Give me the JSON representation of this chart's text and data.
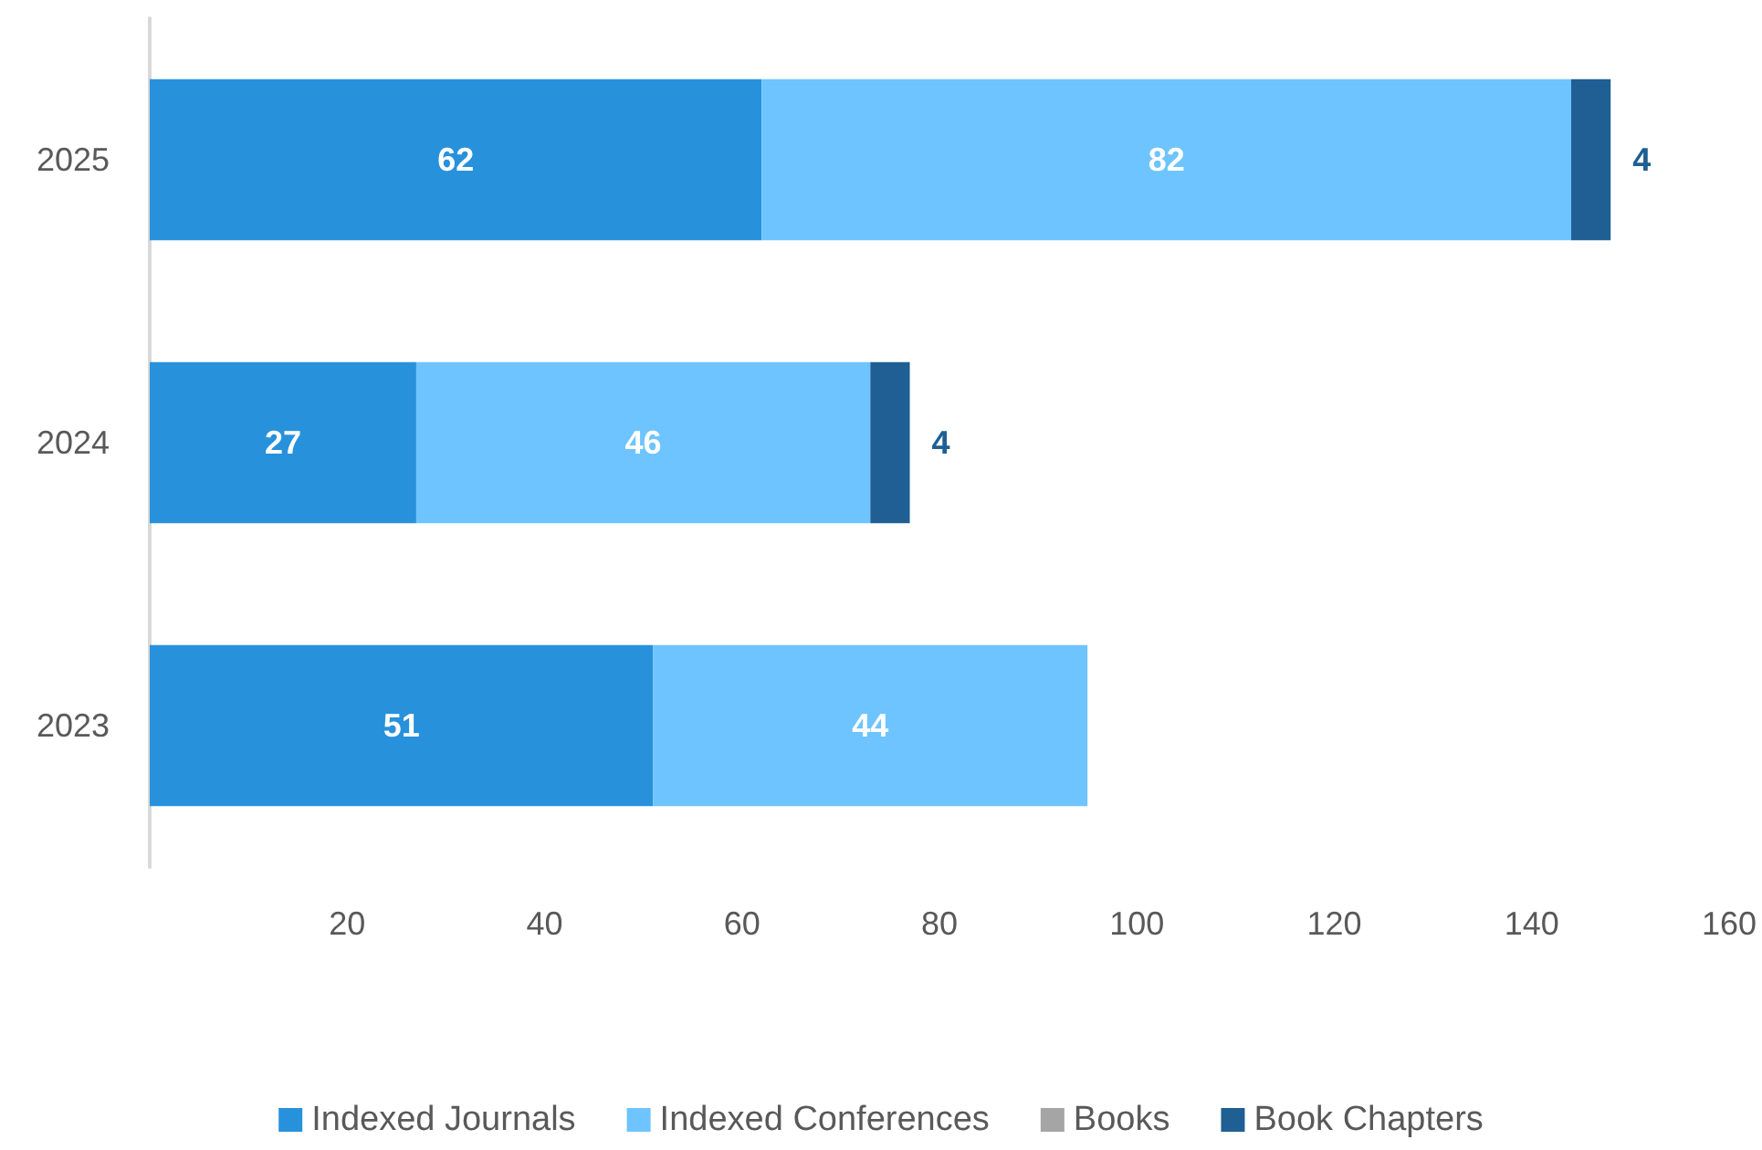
{
  "chart_data": {
    "type": "bar",
    "orientation": "horizontal",
    "stacked": true,
    "categories": [
      "2025",
      "2024",
      "2023"
    ],
    "series": [
      {
        "name": "Indexed Journals",
        "color": "#2891dc",
        "values": [
          62,
          27,
          51
        ]
      },
      {
        "name": "Indexed Conferences",
        "color": "#6ec4fe",
        "values": [
          82,
          46,
          44
        ]
      },
      {
        "name": "Books",
        "color": "#a5a5a5",
        "values": [
          null,
          null,
          null
        ]
      },
      {
        "name": "Book Chapters",
        "color": "#1f5f93",
        "values": [
          4,
          4,
          null
        ]
      }
    ],
    "xlim": [
      0,
      160
    ],
    "xticks": [
      20,
      40,
      60,
      80,
      100,
      120,
      140,
      160
    ],
    "grid": false,
    "legend": "bottom",
    "data_labels": true
  }
}
